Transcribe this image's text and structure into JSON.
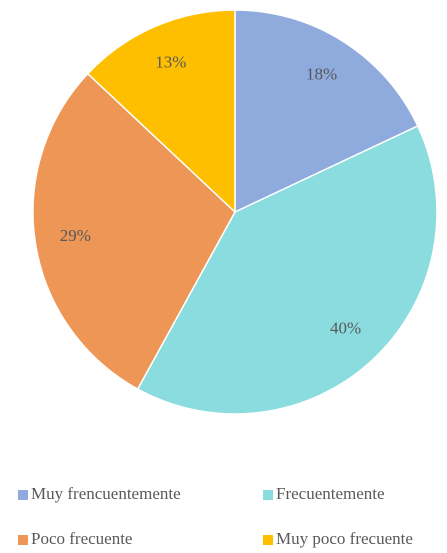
{
  "chart_data": {
    "type": "pie",
    "categories": [
      "Muy frencuentemente",
      "Frecuentemente",
      "Poco frecuente",
      "Muy poco frecuente"
    ],
    "values": [
      18,
      40,
      29,
      13
    ],
    "value_labels": [
      "18%",
      "40%",
      "29%",
      "13%"
    ],
    "colors": [
      "#8faadc",
      "#8adcdf",
      "#ed9655",
      "#fdbf00"
    ],
    "legend": "bottom"
  }
}
